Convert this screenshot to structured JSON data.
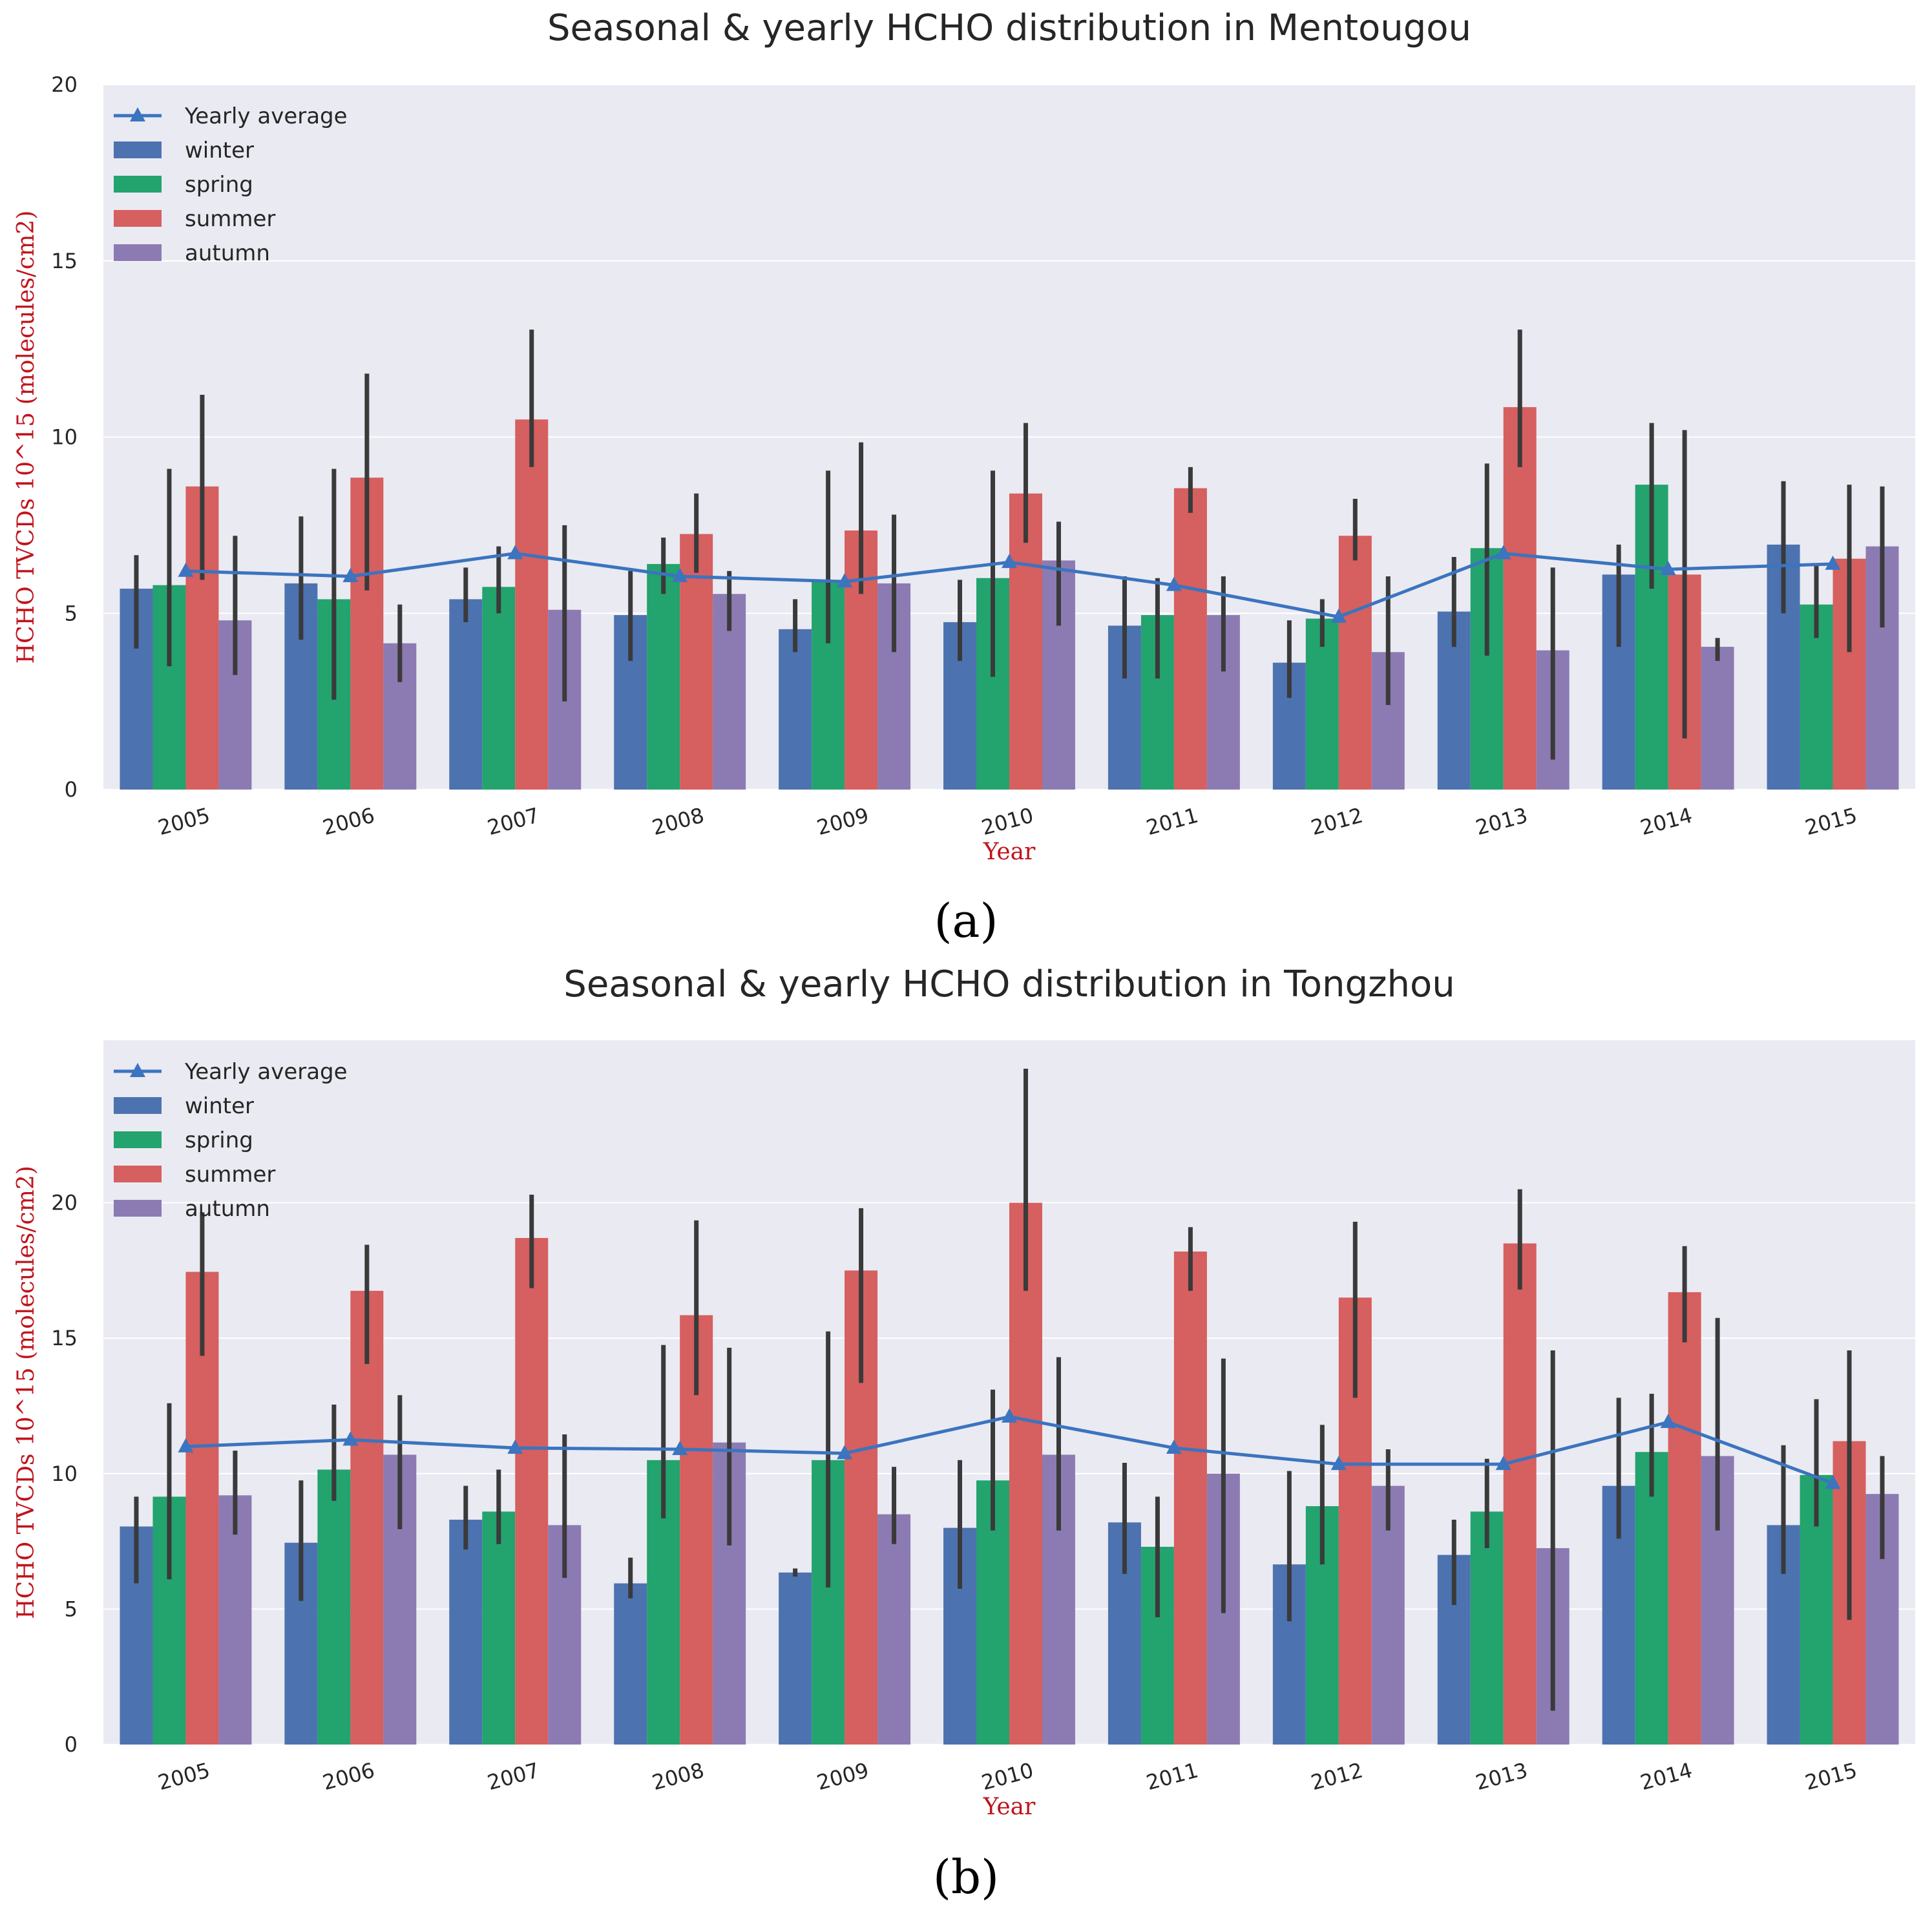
{
  "panel_labels": [
    "(a)",
    "(b)"
  ],
  "colors": {
    "background": "#eaeaf2",
    "grid": "#ffffff",
    "winter": "#4c72b0",
    "spring": "#23a36d",
    "summer": "#d65f5f",
    "autumn": "#8c7bb2",
    "line": "#3b74bf",
    "errorbar": "#3a3a3a"
  },
  "chart_data": [
    {
      "type": "bar",
      "title": "Seasonal & yearly HCHO distribution in Mentougou",
      "xlabel": "Year",
      "ylabel": "HCHO TVCDs 10^15 (molecules/cm2)",
      "ylim": [
        0,
        20
      ],
      "yticks": [
        0,
        5,
        10,
        15,
        20
      ],
      "grid": true,
      "legend_position": "top-left",
      "categories": [
        "2005",
        "2006",
        "2007",
        "2008",
        "2009",
        "2010",
        "2011",
        "2012",
        "2013",
        "2014",
        "2015"
      ],
      "series": [
        {
          "name": "winter",
          "values": [
            5.7,
            5.85,
            5.4,
            4.95,
            4.55,
            4.75,
            4.65,
            3.6,
            5.05,
            6.1,
            6.95
          ],
          "err_low": [
            4.0,
            4.25,
            4.75,
            3.65,
            3.9,
            3.65,
            3.15,
            2.6,
            4.05,
            4.05,
            5.0
          ],
          "err_high": [
            6.65,
            7.75,
            6.3,
            6.2,
            5.4,
            5.95,
            6.05,
            4.8,
            6.6,
            6.95,
            8.75
          ]
        },
        {
          "name": "spring",
          "values": [
            5.8,
            5.4,
            5.75,
            6.4,
            5.95,
            6.0,
            4.95,
            4.85,
            6.85,
            8.65,
            5.25
          ],
          "err_low": [
            3.5,
            2.55,
            5.0,
            5.55,
            4.15,
            3.2,
            3.15,
            4.05,
            3.8,
            5.7,
            4.3
          ],
          "err_high": [
            9.1,
            9.1,
            6.9,
            7.15,
            9.05,
            9.05,
            6.0,
            5.4,
            9.25,
            10.4,
            6.4
          ]
        },
        {
          "name": "summer",
          "values": [
            8.6,
            8.85,
            10.5,
            7.25,
            7.35,
            8.4,
            8.55,
            7.2,
            10.85,
            6.1,
            6.55
          ],
          "err_low": [
            5.95,
            5.65,
            9.15,
            6.15,
            5.55,
            7.0,
            7.85,
            6.5,
            9.15,
            1.45,
            3.9
          ],
          "err_high": [
            11.2,
            11.8,
            13.05,
            8.4,
            9.85,
            10.4,
            9.15,
            8.25,
            13.05,
            10.2,
            8.65
          ]
        },
        {
          "name": "autumn",
          "values": [
            4.8,
            4.15,
            5.1,
            5.55,
            5.85,
            6.5,
            4.95,
            3.9,
            3.95,
            4.05,
            6.9
          ],
          "err_low": [
            3.25,
            3.05,
            2.5,
            4.5,
            3.9,
            4.65,
            3.35,
            2.4,
            0.85,
            3.65,
            4.6
          ],
          "err_high": [
            7.2,
            5.25,
            7.5,
            6.2,
            7.8,
            7.6,
            6.05,
            6.05,
            6.3,
            4.3,
            8.6
          ]
        }
      ],
      "line": {
        "name": "Yearly average",
        "values": [
          6.2,
          6.05,
          6.7,
          6.05,
          5.9,
          6.45,
          5.8,
          4.9,
          6.7,
          6.25,
          6.4
        ]
      }
    },
    {
      "type": "bar",
      "title": "Seasonal & yearly HCHO distribution in Tongzhou",
      "xlabel": "Year",
      "ylabel": "HCHO TVCDs 10^15 (molecules/cm2)",
      "ylim": [
        0,
        26
      ],
      "yticks": [
        0,
        5,
        10,
        15,
        20
      ],
      "grid": true,
      "legend_position": "top-left",
      "categories": [
        "2005",
        "2006",
        "2007",
        "2008",
        "2009",
        "2010",
        "2011",
        "2012",
        "2013",
        "2014",
        "2015"
      ],
      "series": [
        {
          "name": "winter",
          "values": [
            8.05,
            7.45,
            8.3,
            5.95,
            6.35,
            8.0,
            8.2,
            6.65,
            7.0,
            9.55,
            8.1
          ],
          "err_low": [
            5.95,
            5.3,
            7.2,
            5.4,
            6.2,
            5.75,
            6.3,
            4.55,
            5.15,
            7.6,
            6.3
          ],
          "err_high": [
            9.15,
            9.75,
            9.55,
            6.9,
            6.5,
            10.5,
            10.4,
            10.1,
            8.3,
            12.8,
            11.05
          ]
        },
        {
          "name": "spring",
          "values": [
            9.15,
            10.15,
            8.6,
            10.5,
            10.5,
            9.75,
            7.3,
            8.8,
            8.6,
            10.8,
            9.95
          ],
          "err_low": [
            6.1,
            9.0,
            7.4,
            8.35,
            5.8,
            7.9,
            4.7,
            6.65,
            7.25,
            9.15,
            8.05
          ],
          "err_high": [
            12.6,
            12.55,
            10.15,
            14.75,
            15.25,
            13.1,
            9.15,
            11.8,
            10.55,
            12.95,
            12.75
          ]
        },
        {
          "name": "summer",
          "values": [
            17.45,
            16.75,
            18.7,
            15.85,
            17.5,
            20.0,
            18.2,
            16.5,
            18.5,
            16.7,
            11.2
          ],
          "err_low": [
            14.35,
            14.05,
            16.85,
            12.9,
            13.35,
            16.75,
            16.75,
            12.8,
            16.8,
            14.85,
            4.6
          ],
          "err_high": [
            19.65,
            18.45,
            20.3,
            19.35,
            19.8,
            24.95,
            19.1,
            19.3,
            20.5,
            18.4,
            14.55
          ]
        },
        {
          "name": "autumn",
          "values": [
            9.2,
            10.7,
            8.1,
            11.15,
            8.5,
            10.7,
            10.0,
            9.55,
            7.25,
            10.65,
            9.25
          ],
          "err_low": [
            7.75,
            7.95,
            6.15,
            7.35,
            7.4,
            7.9,
            4.85,
            7.9,
            1.25,
            7.9,
            6.85
          ],
          "err_high": [
            10.85,
            12.9,
            11.45,
            14.65,
            10.25,
            14.3,
            14.25,
            10.9,
            14.55,
            15.75,
            10.65
          ]
        }
      ],
      "line": {
        "name": "Yearly average",
        "values": [
          11.0,
          11.25,
          10.95,
          10.9,
          10.75,
          12.1,
          10.95,
          10.35,
          10.35,
          11.9,
          9.65
        ]
      }
    }
  ]
}
